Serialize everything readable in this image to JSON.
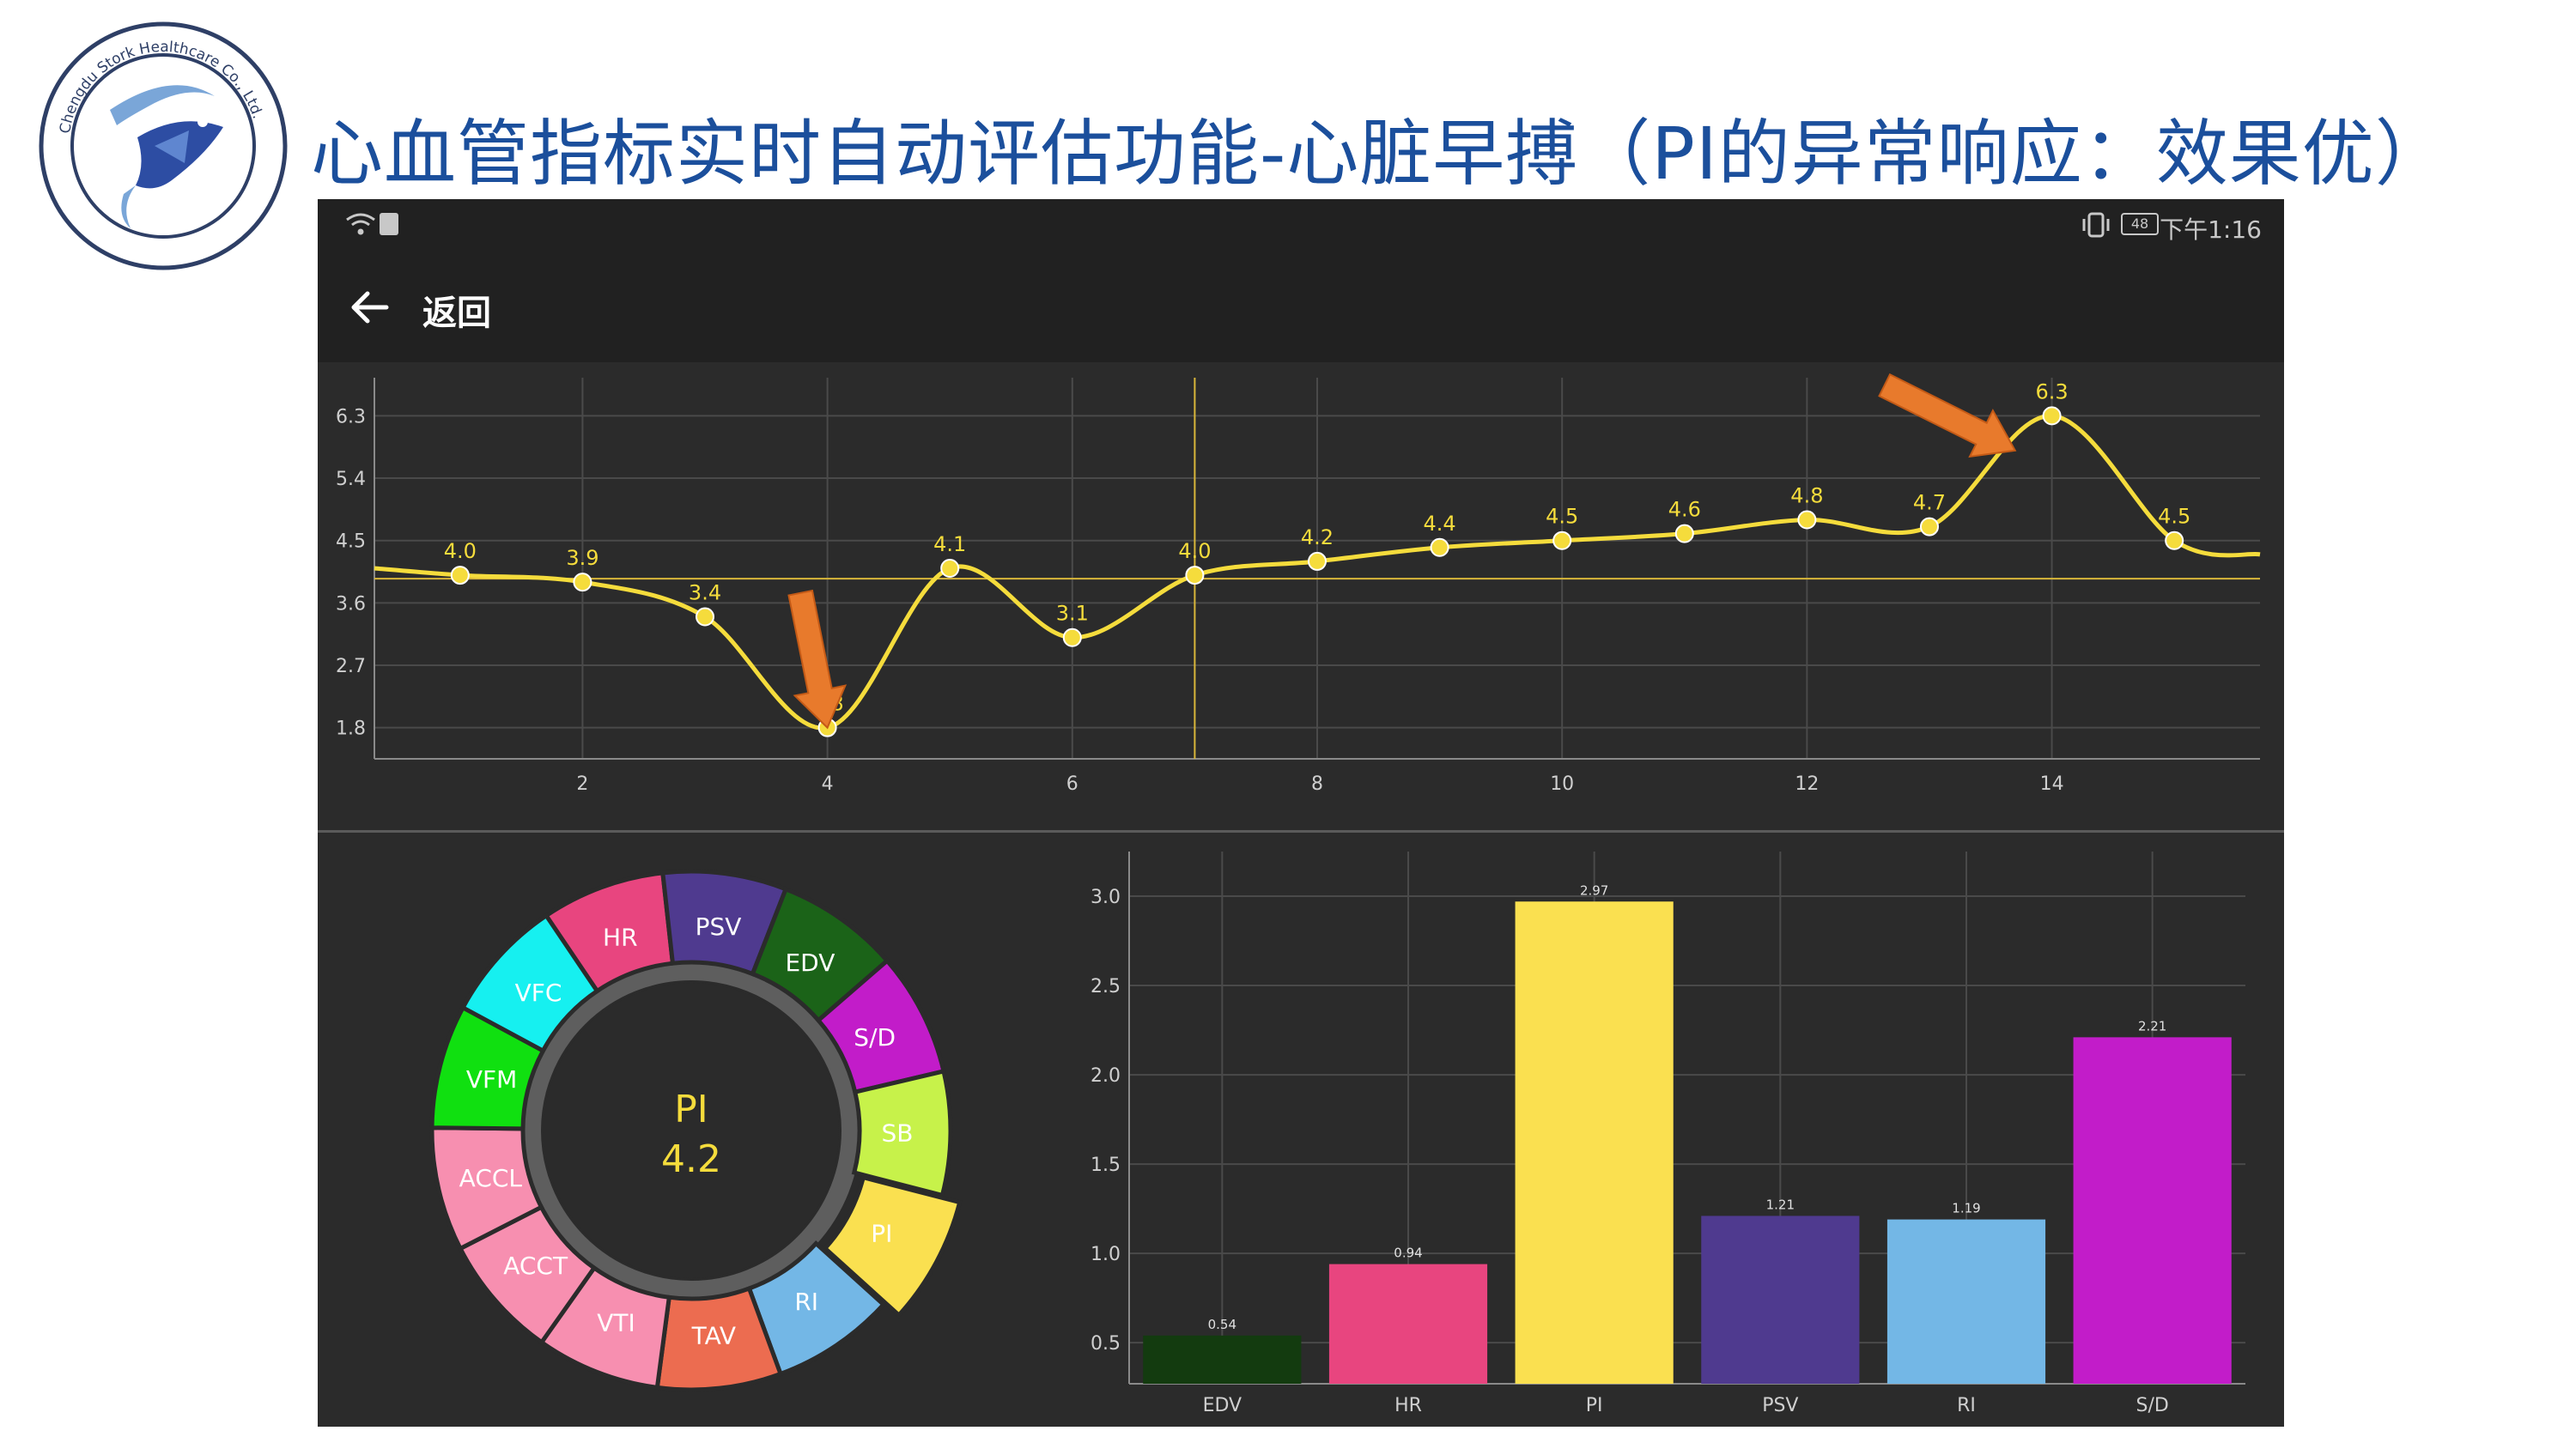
{
  "slide": {
    "title": "心血管指标实时自动评估功能-心脏早搏（PI的异常响应：效果优）",
    "logo_text": "Chengdu Stork Healthcare Co., Ltd."
  },
  "status_bar": {
    "time": "下午1:16",
    "battery": "48",
    "icons": [
      "wifi-icon",
      "sim-icon",
      "vibrate-icon",
      "battery-icon"
    ]
  },
  "app_bar": {
    "back_icon": "arrow-left-icon",
    "back_label": "返回"
  },
  "colors": {
    "title": "#1b4f9c",
    "screen_bg": "#2b2b2b",
    "bar_bg": "#212121",
    "line": "#f5dc3c",
    "annotation_arrow": "#e87a2c",
    "grid": "#4a4a4a"
  },
  "chart_data": [
    {
      "type": "line",
      "x": [
        1,
        2,
        3,
        4,
        5,
        6,
        7,
        8,
        9,
        10,
        11,
        12,
        13,
        14,
        15
      ],
      "series": [
        {
          "values": [
            4.0,
            3.9,
            3.4,
            1.8,
            4.1,
            3.1,
            4.0,
            4.2,
            4.4,
            4.5,
            4.6,
            4.8,
            4.7,
            6.3,
            4.5
          ],
          "point_labels": [
            "4.0",
            "3.9",
            "3.4",
            "1.8",
            "4.1",
            "3.1",
            "4.0",
            "4.2",
            "4.4",
            "4.5",
            "4.6",
            "4.8",
            "4.7",
            "6.3",
            "4.5"
          ],
          "color": "#f5dc3c"
        }
      ],
      "line_start_y": 4.1,
      "line_end_y": 4.3,
      "xlim": [
        0.3,
        15.7
      ],
      "ylim": [
        1.35,
        6.85
      ],
      "xticks": [
        "2",
        "4",
        "6",
        "8",
        "10",
        "12",
        "14"
      ],
      "yticks": [
        "1.8",
        "2.7",
        "3.6",
        "4.5",
        "5.4",
        "6.3"
      ],
      "reference_lines": {
        "y": 3.95,
        "x": 7
      },
      "annotations": [
        {
          "type": "arrow",
          "target_x": 4,
          "target_y": 1.8,
          "color": "#e87a2c"
        },
        {
          "type": "arrow",
          "target_x": 13.7,
          "target_y": 5.8,
          "color": "#e87a2c"
        }
      ],
      "grid": true
    },
    {
      "type": "pie",
      "variant": "donut",
      "center_label": "PI",
      "center_value": "4.2",
      "highlighted": "PI",
      "slices": [
        {
          "label": "HR",
          "color": "#e8457f",
          "text_color": "#ffffff"
        },
        {
          "label": "PSV",
          "color": "#4f3a8f",
          "text_color": "#ffffff"
        },
        {
          "label": "EDV",
          "color": "#1b6318",
          "text_color": "#ffffff"
        },
        {
          "label": "S/D",
          "color": "#c21cc9",
          "text_color": "#ffffff"
        },
        {
          "label": "SB",
          "color": "#c7f24a",
          "text_color": "#ffffff"
        },
        {
          "label": "PI",
          "color": "#fae050",
          "text_color": "#ffffff"
        },
        {
          "label": "RI",
          "color": "#73b7e6",
          "text_color": "#ffffff"
        },
        {
          "label": "TAV",
          "color": "#ec6c50",
          "text_color": "#ffffff"
        },
        {
          "label": "VTI",
          "color": "#f78fb0",
          "text_color": "#ffffff"
        },
        {
          "label": "ACCT",
          "color": "#f78fb0",
          "text_color": "#ffffff"
        },
        {
          "label": "ACCL",
          "color": "#f78fb0",
          "text_color": "#ffffff"
        },
        {
          "label": "VFM",
          "color": "#10e010",
          "text_color": "#ffffff"
        },
        {
          "label": "VFC",
          "color": "#16f0f0",
          "text_color": "#ffffff"
        }
      ]
    },
    {
      "type": "bar",
      "categories": [
        "EDV",
        "HR",
        "PI",
        "PSV",
        "RI",
        "S/D"
      ],
      "values": [
        0.54,
        0.94,
        2.97,
        1.21,
        1.19,
        2.21
      ],
      "value_labels": [
        "0.54",
        "0.94",
        "2.97",
        "1.21",
        "1.19",
        "2.21"
      ],
      "colors": [
        "#133b0f",
        "#e8457f",
        "#fae050",
        "#4f3a8f",
        "#73b7e6",
        "#c21cc9"
      ],
      "yticks": [
        "0.5",
        "1.0",
        "1.5",
        "2.0",
        "2.5",
        "3.0"
      ],
      "ylim": [
        0.27,
        3.25
      ],
      "grid": true
    }
  ]
}
